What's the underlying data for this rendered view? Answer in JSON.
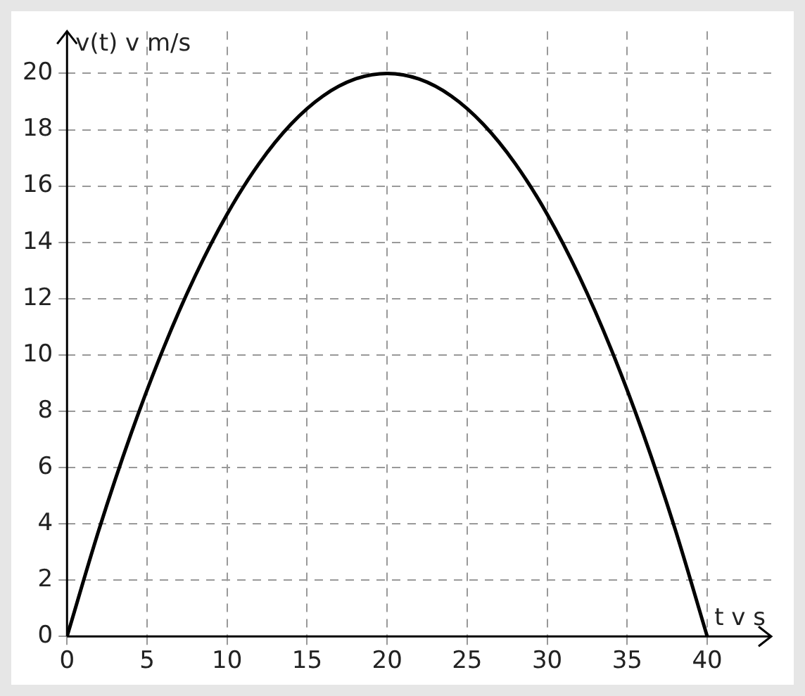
{
  "chart_data": {
    "type": "line",
    "xlabel": "t v s",
    "ylabel": "v(t) v m/s",
    "x": [
      0,
      2,
      4,
      6,
      8,
      10,
      12,
      14,
      16,
      18,
      20,
      22,
      24,
      26,
      28,
      30,
      32,
      34,
      36,
      38,
      40
    ],
    "series": [
      {
        "color": "#000000",
        "values": [
          0,
          3.8,
          7.2,
          10.2,
          12.8,
          15,
          16.8,
          18.2,
          19.2,
          19.8,
          20,
          19.8,
          19.2,
          18.2,
          16.8,
          15,
          12.8,
          10.2,
          7.2,
          3.8,
          0
        ]
      }
    ],
    "xlim": [
      0,
      44
    ],
    "ylim": [
      0,
      21.5
    ],
    "xticks": [
      0,
      5,
      10,
      15,
      20,
      25,
      30,
      35,
      40
    ],
    "yticks": [
      0,
      2,
      4,
      6,
      8,
      10,
      12,
      14,
      16,
      18,
      20
    ],
    "grid": true,
    "legend": false,
    "marker": "none",
    "line_style": "solid"
  }
}
